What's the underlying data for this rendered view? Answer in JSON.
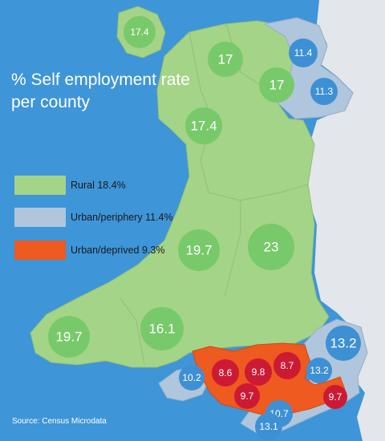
{
  "title": "% Self employment rate per county",
  "colors": {
    "sea": "#3e95d8",
    "england": "#e3e6ea",
    "rural": "#a4d487",
    "urban_periphery": "#b0c6dc",
    "urban_deprived": "#ee5a1f",
    "bubble_rural": "#78c96a",
    "bubble_periphery": "#3e90d4",
    "bubble_deprived": "#cc1a35"
  },
  "legend": [
    {
      "label": "Rural 18.4%",
      "color": "#a4d487"
    },
    {
      "label": "Urban/periphery 11.4%",
      "color": "#b0c6dc"
    },
    {
      "label": "Urban/deprived 9.3%",
      "color": "#ee5a1f"
    }
  ],
  "bubbles": [
    {
      "label": "17.4",
      "category": "rural"
    },
    {
      "label": "17",
      "category": "rural"
    },
    {
      "label": "17",
      "category": "rural"
    },
    {
      "label": "17.4",
      "category": "rural"
    },
    {
      "label": "19.7",
      "category": "rural"
    },
    {
      "label": "23",
      "category": "rural"
    },
    {
      "label": "19.7",
      "category": "rural"
    },
    {
      "label": "16.1",
      "category": "rural"
    },
    {
      "label": "11.4",
      "category": "urban_periphery"
    },
    {
      "label": "11.3",
      "category": "urban_periphery"
    },
    {
      "label": "13.2",
      "category": "urban_periphery"
    },
    {
      "label": "13.2",
      "category": "urban_periphery"
    },
    {
      "label": "10.2",
      "category": "urban_periphery"
    },
    {
      "label": "10.7",
      "category": "urban_periphery"
    },
    {
      "label": "13.1",
      "category": "urban_periphery"
    },
    {
      "label": "8.6",
      "category": "urban_deprived"
    },
    {
      "label": "9.8",
      "category": "urban_deprived"
    },
    {
      "label": "8.7",
      "category": "urban_deprived"
    },
    {
      "label": "9.7",
      "category": "urban_deprived"
    },
    {
      "label": "9.7",
      "category": "urban_deprived"
    }
  ],
  "source": "Source: Census Microdata"
}
